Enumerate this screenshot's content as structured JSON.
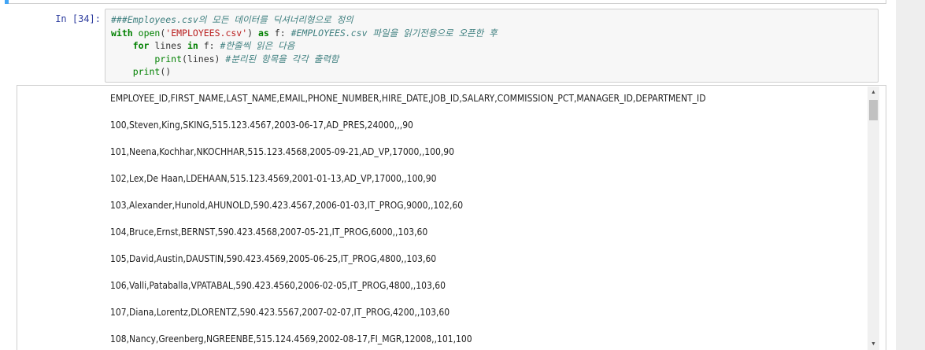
{
  "cell": {
    "prompt": "In [34]:",
    "code_lines": [
      [
        {
          "t": "###Employees.csv의 모든 데이터를 딕셔너리형으로 정의",
          "c": "cm"
        }
      ],
      [
        {
          "t": "with",
          "c": "kw"
        },
        {
          "t": " "
        },
        {
          "t": "open",
          "c": "fn"
        },
        {
          "t": "("
        },
        {
          "t": "'EMPLOYEES.csv'",
          "c": "str"
        },
        {
          "t": ") "
        },
        {
          "t": "as",
          "c": "kw"
        },
        {
          "t": " f: "
        },
        {
          "t": "#EMPLOYEES.csv 파일을 읽기전용으로 오픈한 후",
          "c": "cm"
        }
      ],
      [
        {
          "t": "    "
        },
        {
          "t": "for",
          "c": "kw"
        },
        {
          "t": " lines "
        },
        {
          "t": "in",
          "c": "kw"
        },
        {
          "t": " f: "
        },
        {
          "t": "#한줄씩 읽은 다음",
          "c": "cm"
        }
      ],
      [
        {
          "t": "        "
        },
        {
          "t": "print",
          "c": "fn"
        },
        {
          "t": "(lines) "
        },
        {
          "t": "#분리된 항목을 각각 출력함",
          "c": "cm"
        }
      ],
      [
        {
          "t": "    "
        },
        {
          "t": "print",
          "c": "fn"
        },
        {
          "t": "()"
        }
      ]
    ]
  },
  "output": {
    "lines": [
      "EMPLOYEE_ID,FIRST_NAME,LAST_NAME,EMAIL,PHONE_NUMBER,HIRE_DATE,JOB_ID,SALARY,COMMISSION_PCT,MANAGER_ID,DEPARTMENT_ID",
      "100,Steven,King,SKING,515.123.4567,2003-06-17,AD_PRES,24000,,,90",
      "101,Neena,Kochhar,NKOCHHAR,515.123.4568,2005-09-21,AD_VP,17000,,100,90",
      "102,Lex,De Haan,LDEHAAN,515.123.4569,2001-01-13,AD_VP,17000,,100,90",
      "103,Alexander,Hunold,AHUNOLD,590.423.4567,2006-01-03,IT_PROG,9000,,102,60",
      "104,Bruce,Ernst,BERNST,590.423.4568,2007-05-21,IT_PROG,6000,,103,60",
      "105,David,Austin,DAUSTIN,590.423.4569,2005-06-25,IT_PROG,4800,,103,60",
      "106,Valli,Pataballa,VPATABAL,590.423.4560,2006-02-05,IT_PROG,4800,,103,60",
      "107,Diana,Lorentz,DLORENTZ,590.423.5567,2007-02-07,IT_PROG,4200,,103,60",
      "108,Nancy,Greenberg,NGREENBE,515.124.4569,2002-08-17,FI_MGR,12008,,101,100"
    ]
  },
  "scrollbar": {
    "up_glyph": "▲",
    "down_glyph": "▼",
    "position_fraction": 0.0
  },
  "colors": {
    "prompt": "#303f9f",
    "keyword": "#008000",
    "string": "#ba2121",
    "comment": "#408080",
    "cell_indicator": "#42a5f5"
  }
}
